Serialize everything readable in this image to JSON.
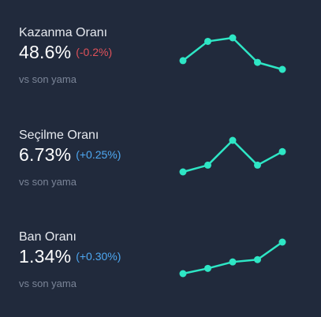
{
  "colors": {
    "background": "#212a3c",
    "sparkline": "#2ee6c5",
    "negative_delta": "#e0525a",
    "positive_delta": "#4ea8f2"
  },
  "stats": [
    {
      "label": "Kazanma Oranı",
      "value": "48.6%",
      "delta": "(-0.2%)",
      "delta_trend": "negative",
      "sub": "vs son yama",
      "trend": [
        46,
        51.5,
        52.5,
        45.5,
        43.5
      ]
    },
    {
      "label": "Seçilme Oranı",
      "value": "6.73%",
      "delta": "(+0.25%)",
      "delta_trend": "positive",
      "sub": "vs son yama",
      "trend": [
        6.0,
        6.3,
        7.4,
        6.3,
        6.9
      ]
    },
    {
      "label": "Ban Oranı",
      "value": "1.34%",
      "delta": "(+0.30%)",
      "delta_trend": "positive",
      "sub": "vs son yama",
      "trend": [
        1.0,
        1.09,
        1.2,
        1.24,
        1.54
      ]
    }
  ]
}
